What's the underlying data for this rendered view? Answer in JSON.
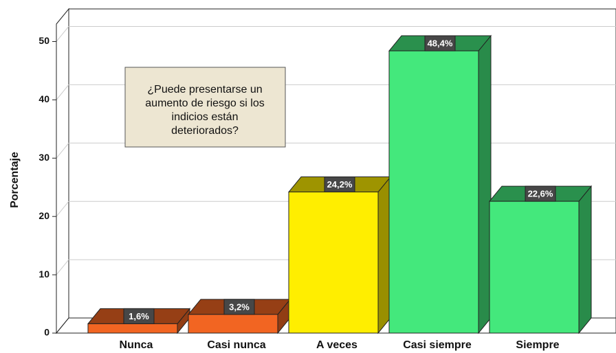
{
  "chart_data": {
    "type": "bar3d",
    "categories": [
      "Nunca",
      "Casi nunca",
      "A veces",
      "Casi siempre",
      "Siempre"
    ],
    "values": [
      1.6,
      3.2,
      24.2,
      48.4,
      22.6
    ],
    "value_labels": [
      "1,6%",
      "3,2%",
      "24,2%",
      "48,4%",
      "22,6%"
    ],
    "colors": [
      "#f26522",
      "#f26522",
      "#ffee00",
      "#44e87c",
      "#44e87c"
    ],
    "ylabel": "Porcentaje",
    "ylim": [
      0,
      53
    ],
    "yticks": [
      0,
      10,
      20,
      30,
      40,
      50
    ],
    "grid": true,
    "annotation": [
      "¿Puede presentarse un",
      "aumento de riesgo si los",
      "indicios están",
      "deteriorados?"
    ]
  }
}
